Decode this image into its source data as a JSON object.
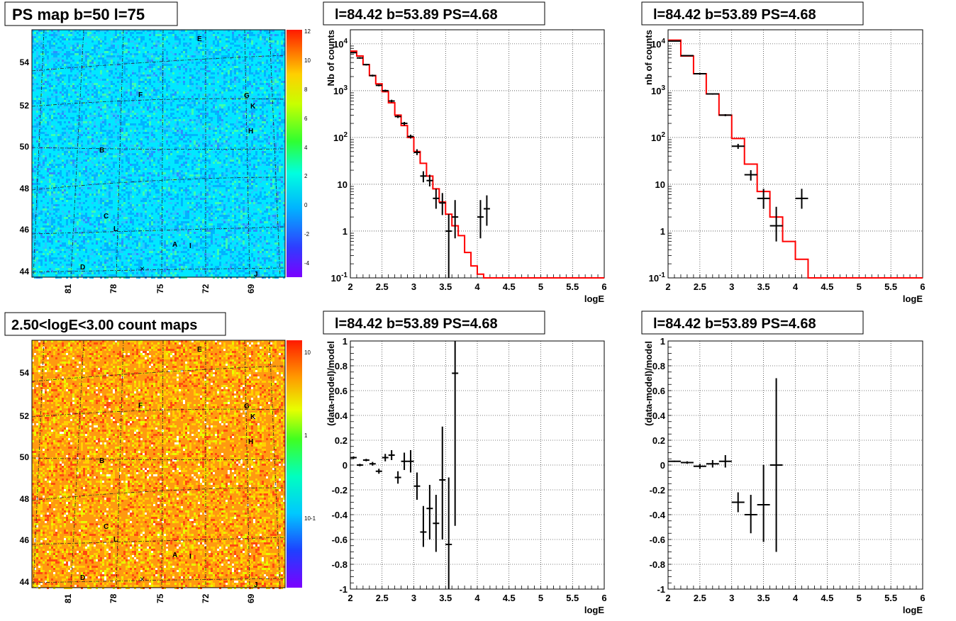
{
  "colors": {
    "hist": "#ff0000",
    "points": "#000000",
    "grid": "#000000",
    "frame": "#000000"
  },
  "maps": [
    {
      "title": "PS map b=50 l=75",
      "kind": "ps",
      "colorbar": {
        "ticks": [
          "12",
          "10",
          "8",
          "6",
          "4",
          "2",
          "0",
          "-2",
          "-4"
        ],
        "scale": "linear",
        "range": [
          -5,
          12
        ]
      },
      "y_ticks": [
        "54",
        "52",
        "50",
        "48",
        "46",
        "44"
      ],
      "x_ticks": [
        "81",
        "78",
        "75",
        "72",
        "69"
      ],
      "source_labels": [
        "E",
        "G",
        "K",
        "F",
        "H",
        "B",
        "C",
        "L",
        "A",
        "I",
        "D",
        "J"
      ]
    },
    {
      "title": "2.50<logE<3.00 count maps",
      "kind": "counts",
      "colorbar": {
        "ticks": [
          "10",
          "1",
          "10-1"
        ],
        "scale": "log"
      },
      "y_ticks": [
        "54",
        "52",
        "50",
        "48",
        "46",
        "44"
      ],
      "x_ticks": [
        "81",
        "78",
        "75",
        "72",
        "69"
      ],
      "source_labels": [
        "E",
        "G",
        "K",
        "F",
        "H",
        "B",
        "C",
        "L",
        "A",
        "I",
        "D",
        "J"
      ]
    }
  ],
  "chart_data": [
    {
      "type": "line",
      "title": "l=84.42 b=53.89 PS=4.68",
      "xlabel": "logE",
      "ylabel": "Nb of counts",
      "xlim": [
        2,
        6
      ],
      "ylim": [
        0.1,
        20000
      ],
      "yscale": "log",
      "grid": true,
      "x_ticks": [
        "2",
        "2.5",
        "3",
        "3.5",
        "4",
        "4.5",
        "5",
        "5.5",
        "6"
      ],
      "y_ticks": [
        "10^-1",
        "1",
        "10",
        "10^2",
        "10^3",
        "10^4"
      ],
      "histogram": {
        "edges": [
          2.0,
          2.1,
          2.2,
          2.3,
          2.4,
          2.5,
          2.6,
          2.7,
          2.8,
          2.9,
          3.0,
          3.1,
          3.2,
          3.3,
          3.4,
          3.5,
          3.6,
          3.7,
          3.8,
          3.9,
          4.0,
          4.1,
          4.2,
          6.0
        ],
        "values": [
          7000,
          5500,
          3600,
          2100,
          1400,
          950,
          550,
          300,
          180,
          100,
          50,
          28,
          15,
          8,
          4.2,
          2.3,
          1.3,
          0.8,
          0.35,
          0.18,
          0.12,
          0.1,
          0.1
        ]
      },
      "points": [
        {
          "x": 2.05,
          "y": 6500,
          "ylo": 6300,
          "yhi": 6700,
          "xerr": 0.05
        },
        {
          "x": 2.15,
          "y": 5000,
          "ylo": 4800,
          "yhi": 5200,
          "xerr": 0.05
        },
        {
          "x": 2.25,
          "y": 3600,
          "ylo": 3450,
          "yhi": 3750,
          "xerr": 0.05
        },
        {
          "x": 2.35,
          "y": 2100,
          "ylo": 2000,
          "yhi": 2200,
          "xerr": 0.05
        },
        {
          "x": 2.45,
          "y": 1300,
          "ylo": 1240,
          "yhi": 1360,
          "xerr": 0.05
        },
        {
          "x": 2.55,
          "y": 1000,
          "ylo": 950,
          "yhi": 1050,
          "xerr": 0.05
        },
        {
          "x": 2.65,
          "y": 600,
          "ylo": 560,
          "yhi": 640,
          "xerr": 0.05
        },
        {
          "x": 2.75,
          "y": 280,
          "ylo": 260,
          "yhi": 300,
          "xerr": 0.05
        },
        {
          "x": 2.85,
          "y": 200,
          "ylo": 180,
          "yhi": 215,
          "xerr": 0.05
        },
        {
          "x": 2.95,
          "y": 105,
          "ylo": 95,
          "yhi": 115,
          "xerr": 0.05
        },
        {
          "x": 3.05,
          "y": 48,
          "ylo": 42,
          "yhi": 56,
          "xerr": 0.05
        },
        {
          "x": 3.15,
          "y": 15,
          "ylo": 11,
          "yhi": 19,
          "xerr": 0.05
        },
        {
          "x": 3.25,
          "y": 12,
          "ylo": 9,
          "yhi": 16,
          "xerr": 0.05
        },
        {
          "x": 3.35,
          "y": 5,
          "ylo": 3,
          "yhi": 8,
          "xerr": 0.05
        },
        {
          "x": 3.45,
          "y": 4,
          "ylo": 2.2,
          "yhi": 6.5,
          "xerr": 0.05
        },
        {
          "x": 3.55,
          "y": 1,
          "ylo": 0.1,
          "yhi": 2.3,
          "xerr": 0.05
        },
        {
          "x": 3.65,
          "y": 2,
          "ylo": 0.7,
          "yhi": 4.6,
          "xerr": 0.05
        },
        {
          "x": 4.05,
          "y": 2,
          "ylo": 0.7,
          "yhi": 4.6,
          "xerr": 0.05
        },
        {
          "x": 4.15,
          "y": 3,
          "ylo": 1.3,
          "yhi": 5.8,
          "xerr": 0.05
        }
      ]
    },
    {
      "type": "line",
      "title": "l=84.42 b=53.89 PS=4.68",
      "xlabel": "logE",
      "ylabel": "nb of counts",
      "xlim": [
        2,
        6
      ],
      "ylim": [
        0.1,
        20000
      ],
      "yscale": "log",
      "grid": true,
      "x_ticks": [
        "2",
        "2.5",
        "3",
        "3.5",
        "4",
        "4.5",
        "5",
        "5.5",
        "6"
      ],
      "y_ticks": [
        "10^-1",
        "1",
        "10",
        "10^2",
        "10^3",
        "10^4"
      ],
      "histogram": {
        "edges": [
          2.0,
          2.2,
          2.4,
          2.6,
          2.8,
          3.0,
          3.2,
          3.4,
          3.6,
          3.8,
          4.0,
          4.2,
          6.0
        ],
        "values": [
          12000,
          5500,
          2300,
          850,
          300,
          95,
          27,
          7,
          2,
          0.6,
          0.25,
          0.1
        ]
      },
      "points": [
        {
          "x": 2.1,
          "y": 11500,
          "ylo": 11300,
          "yhi": 11700,
          "xerr": 0.1
        },
        {
          "x": 2.3,
          "y": 5600,
          "ylo": 5450,
          "yhi": 5750,
          "xerr": 0.1
        },
        {
          "x": 2.5,
          "y": 2300,
          "ylo": 2200,
          "yhi": 2400,
          "xerr": 0.1
        },
        {
          "x": 2.7,
          "y": 850,
          "ylo": 820,
          "yhi": 880,
          "xerr": 0.1
        },
        {
          "x": 2.9,
          "y": 300,
          "ylo": 285,
          "yhi": 315,
          "xerr": 0.1
        },
        {
          "x": 3.1,
          "y": 65,
          "ylo": 57,
          "yhi": 73,
          "xerr": 0.1
        },
        {
          "x": 3.3,
          "y": 16,
          "ylo": 12,
          "yhi": 20,
          "xerr": 0.1
        },
        {
          "x": 3.5,
          "y": 5,
          "ylo": 3,
          "yhi": 8,
          "xerr": 0.1
        },
        {
          "x": 3.7,
          "y": 1.3,
          "ylo": 0.6,
          "yhi": 3.3,
          "xerr": 0.1
        },
        {
          "x": 4.1,
          "y": 5,
          "ylo": 3,
          "yhi": 8,
          "xerr": 0.1
        }
      ]
    },
    {
      "type": "scatter",
      "title": "l=84.42 b=53.89 PS=4.68",
      "xlabel": "logE",
      "ylabel": "(data-model)/model",
      "xlim": [
        2,
        6
      ],
      "ylim": [
        -1,
        1
      ],
      "grid": true,
      "x_ticks": [
        "2",
        "2.5",
        "3",
        "3.5",
        "4",
        "4.5",
        "5",
        "5.5",
        "6"
      ],
      "y_ticks": [
        "-1",
        "-0.8",
        "-0.6",
        "-0.4",
        "-0.2",
        "0",
        "0.2",
        "0.4",
        "0.6",
        "0.8",
        "1"
      ],
      "points": [
        {
          "x": 2.05,
          "y": 0.06,
          "ylo": 0.05,
          "yhi": 0.07,
          "xerr": 0.05
        },
        {
          "x": 2.15,
          "y": 0.0,
          "ylo": -0.01,
          "yhi": 0.01,
          "xerr": 0.05
        },
        {
          "x": 2.25,
          "y": 0.04,
          "ylo": 0.03,
          "yhi": 0.05,
          "xerr": 0.05
        },
        {
          "x": 2.35,
          "y": 0.01,
          "ylo": -0.005,
          "yhi": 0.025,
          "xerr": 0.05
        },
        {
          "x": 2.45,
          "y": -0.05,
          "ylo": -0.07,
          "yhi": -0.03,
          "xerr": 0.05
        },
        {
          "x": 2.55,
          "y": 0.06,
          "ylo": 0.03,
          "yhi": 0.09,
          "xerr": 0.05
        },
        {
          "x": 2.65,
          "y": 0.08,
          "ylo": 0.04,
          "yhi": 0.12,
          "xerr": 0.05
        },
        {
          "x": 2.75,
          "y": -0.1,
          "ylo": -0.15,
          "yhi": -0.05,
          "xerr": 0.05
        },
        {
          "x": 2.85,
          "y": 0.03,
          "ylo": -0.04,
          "yhi": 0.1,
          "xerr": 0.05
        },
        {
          "x": 2.95,
          "y": 0.03,
          "ylo": -0.06,
          "yhi": 0.12,
          "xerr": 0.05
        },
        {
          "x": 3.05,
          "y": -0.17,
          "ylo": -0.28,
          "yhi": -0.06,
          "xerr": 0.05
        },
        {
          "x": 3.15,
          "y": -0.54,
          "ylo": -0.66,
          "yhi": -0.33,
          "xerr": 0.05
        },
        {
          "x": 3.25,
          "y": -0.35,
          "ylo": -0.6,
          "yhi": -0.16,
          "xerr": 0.05
        },
        {
          "x": 3.35,
          "y": -0.47,
          "ylo": -0.7,
          "yhi": -0.24,
          "xerr": 0.05
        },
        {
          "x": 3.45,
          "y": -0.12,
          "ylo": -0.6,
          "yhi": 0.31,
          "xerr": 0.05
        },
        {
          "x": 3.55,
          "y": -0.64,
          "ylo": -1.0,
          "yhi": -0.1,
          "xerr": 0.05
        },
        {
          "x": 3.65,
          "y": 0.74,
          "ylo": -0.49,
          "yhi": 1.0,
          "xerr": 0.05
        }
      ]
    },
    {
      "type": "scatter",
      "title": "l=84.42 b=53.89 PS=4.68",
      "xlabel": "logE",
      "ylabel": "(data-model)/model",
      "xlim": [
        2,
        6
      ],
      "ylim": [
        -1,
        1
      ],
      "grid": true,
      "x_ticks": [
        "2",
        "2.5",
        "3",
        "3.5",
        "4",
        "4.5",
        "5",
        "5.5",
        "6"
      ],
      "y_ticks": [
        "-1",
        "-0.8",
        "-0.6",
        "-0.4",
        "-0.2",
        "0",
        "0.2",
        "0.4",
        "0.6",
        "0.8",
        "1"
      ],
      "points": [
        {
          "x": 2.1,
          "y": 0.03,
          "ylo": 0.025,
          "yhi": 0.035,
          "xerr": 0.1
        },
        {
          "x": 2.3,
          "y": 0.02,
          "ylo": 0.01,
          "yhi": 0.03,
          "xerr": 0.1
        },
        {
          "x": 2.5,
          "y": -0.01,
          "ylo": -0.03,
          "yhi": 0.01,
          "xerr": 0.1
        },
        {
          "x": 2.7,
          "y": 0.01,
          "ylo": -0.02,
          "yhi": 0.04,
          "xerr": 0.1
        },
        {
          "x": 2.9,
          "y": 0.03,
          "ylo": -0.02,
          "yhi": 0.08,
          "xerr": 0.1
        },
        {
          "x": 3.1,
          "y": -0.3,
          "ylo": -0.38,
          "yhi": -0.22,
          "xerr": 0.1
        },
        {
          "x": 3.3,
          "y": -0.4,
          "ylo": -0.55,
          "yhi": -0.24,
          "xerr": 0.1
        },
        {
          "x": 3.5,
          "y": -0.32,
          "ylo": -0.62,
          "yhi": 0.0,
          "xerr": 0.1
        },
        {
          "x": 3.7,
          "y": 0.0,
          "ylo": -0.7,
          "yhi": 0.7,
          "xerr": 0.1
        }
      ]
    }
  ]
}
